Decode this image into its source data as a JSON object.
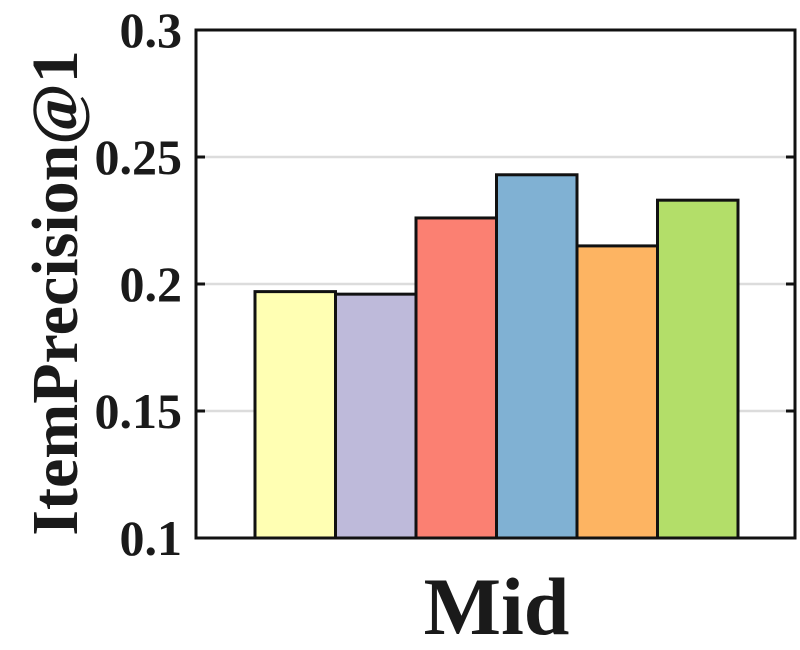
{
  "chart_data": {
    "type": "bar",
    "categories": [
      "Mid"
    ],
    "series": [
      {
        "values": [
          0.197
        ],
        "color": "#FFFFB3"
      },
      {
        "values": [
          0.196
        ],
        "color": "#BEBADA"
      },
      {
        "values": [
          0.226
        ],
        "color": "#FB8072"
      },
      {
        "values": [
          0.243
        ],
        "color": "#80B1D3"
      },
      {
        "values": [
          0.215
        ],
        "color": "#FDB462"
      },
      {
        "values": [
          0.233
        ],
        "color": "#B3DE69"
      }
    ],
    "xlabel": "Mid",
    "ylabel": "ItemPrecision@1",
    "ylim": [
      0.1,
      0.3
    ],
    "yticks": [
      "0.1",
      "0.15",
      "0.2",
      "0.25",
      "0.3"
    ],
    "grid": "horizontal"
  }
}
